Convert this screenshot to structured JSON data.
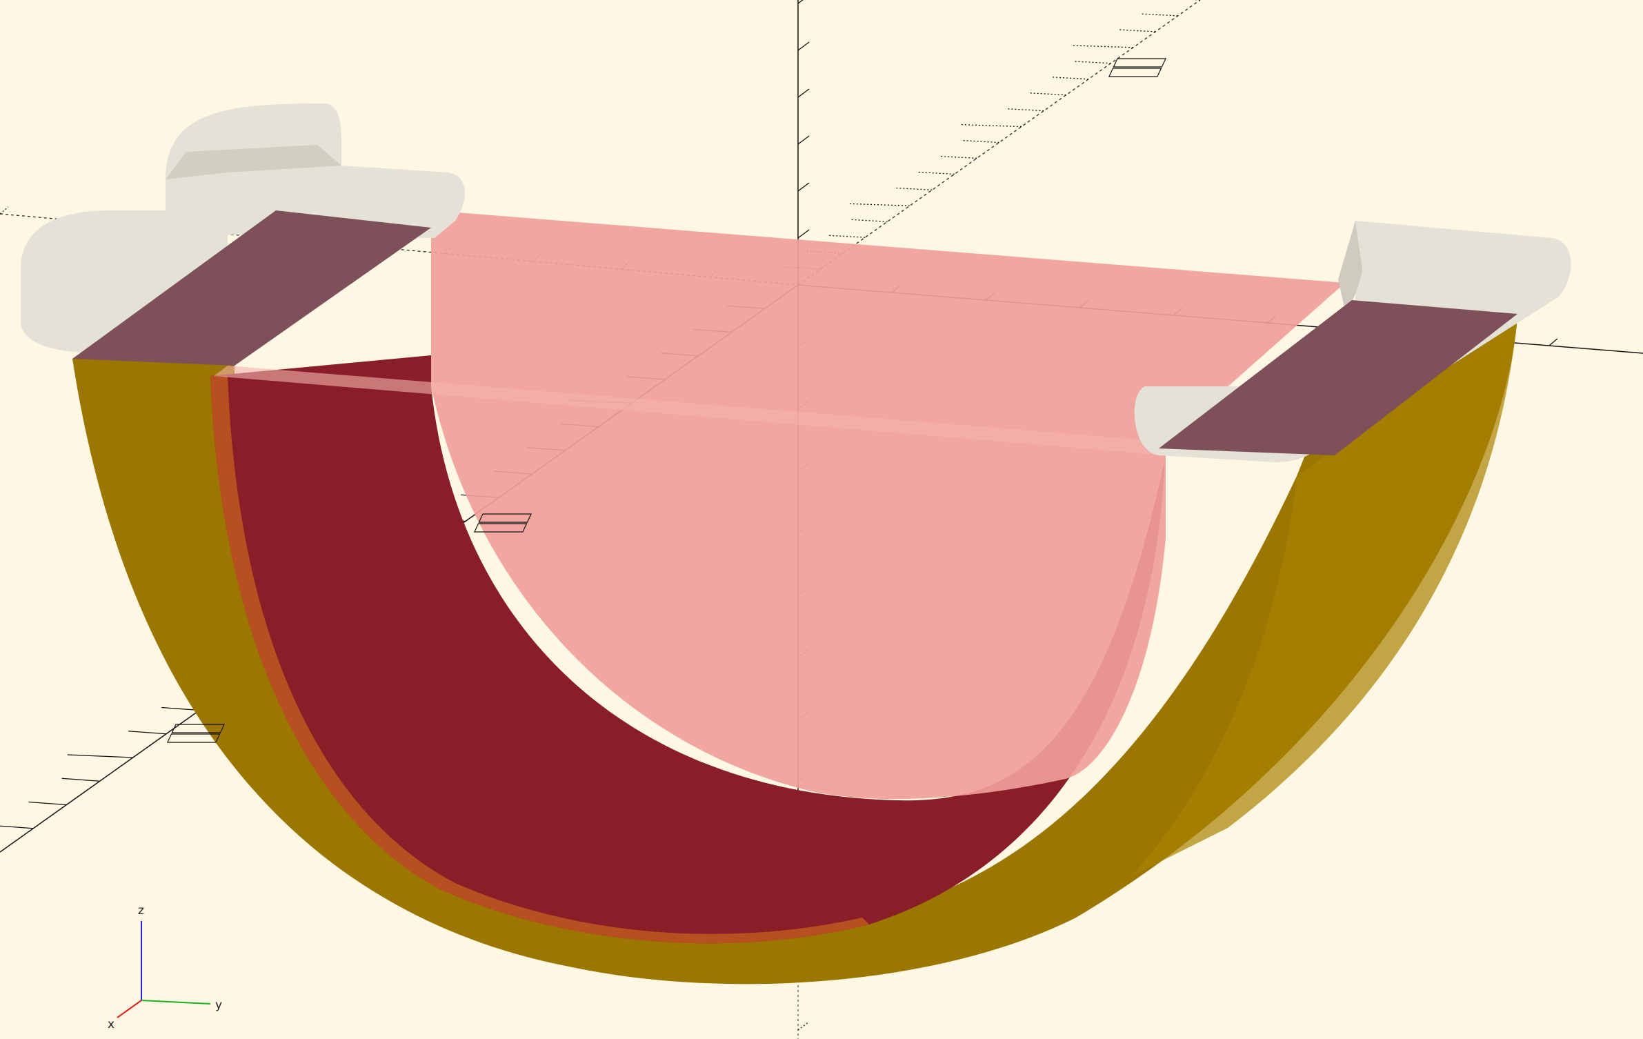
{
  "viewport": {
    "background_color": "#fdf7e3"
  },
  "axis_indicator": {
    "x_label": "x",
    "y_label": "y",
    "z_label": "z",
    "x_color": "#e02020",
    "y_color": "#20b020",
    "z_color": "#2020e0"
  },
  "scale_markers": {
    "marker_a": "",
    "marker_b": "",
    "marker_c": ""
  },
  "model": {
    "bowl_outer_color": "#9b7600",
    "bowl_inner_color": "#8a1e28",
    "cap_color": "#f0a09a",
    "bracket_color": "#e4e1d6",
    "clamp_pad_color": "#7e5059"
  }
}
